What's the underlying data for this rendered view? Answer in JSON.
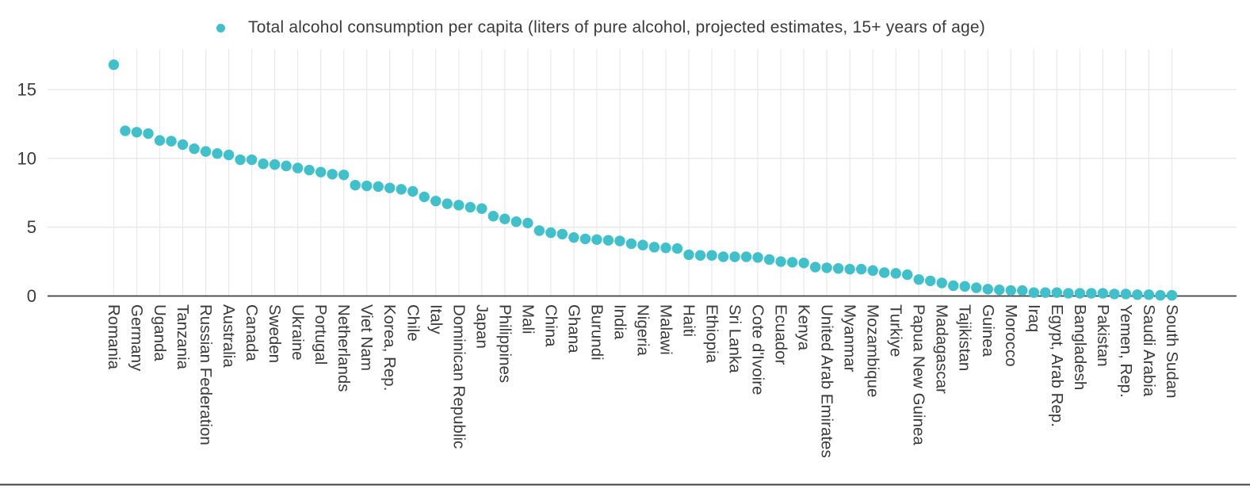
{
  "colors": {
    "marker": "#3fc0ca",
    "text": "#3b3b3b",
    "gridline": "#e9e9e9",
    "axis": "#3f3f3f",
    "background": "#ffffff"
  },
  "legend": {
    "label": "Total alcohol consumption per capita (liters of pure alcohol, projected estimates, 15+ years of age)"
  },
  "chart_data": {
    "type": "scatter",
    "title": "",
    "xlabel": "",
    "ylabel": "",
    "legend_position": "top",
    "grid": true,
    "ylim": [
      0,
      17.9
    ],
    "yticks": [
      0,
      5,
      10,
      15
    ],
    "series_label": "Total alcohol consumption per capita (liters of pure alcohol, projected estimates, 15+ years of age)",
    "points": [
      {
        "label": "Romania",
        "value": 16.8
      },
      {
        "label": "",
        "value": 12.0
      },
      {
        "label": "Germany",
        "value": 11.9
      },
      {
        "label": "",
        "value": 11.8
      },
      {
        "label": "Uganda",
        "value": 11.3
      },
      {
        "label": "",
        "value": 11.25
      },
      {
        "label": "Tanzania",
        "value": 11.0
      },
      {
        "label": "",
        "value": 10.7
      },
      {
        "label": "Russian Federation",
        "value": 10.5
      },
      {
        "label": "",
        "value": 10.35
      },
      {
        "label": "Australia",
        "value": 10.25
      },
      {
        "label": "",
        "value": 9.9
      },
      {
        "label": "Canada",
        "value": 9.9
      },
      {
        "label": "",
        "value": 9.6
      },
      {
        "label": "Sweden",
        "value": 9.55
      },
      {
        "label": "",
        "value": 9.45
      },
      {
        "label": "Ukraine",
        "value": 9.3
      },
      {
        "label": "",
        "value": 9.15
      },
      {
        "label": "Portugal",
        "value": 9.0
      },
      {
        "label": "",
        "value": 8.85
      },
      {
        "label": "Netherlands",
        "value": 8.8
      },
      {
        "label": "",
        "value": 8.05
      },
      {
        "label": "Viet Nam",
        "value": 8.0
      },
      {
        "label": "",
        "value": 7.95
      },
      {
        "label": "Korea, Rep.",
        "value": 7.85
      },
      {
        "label": "",
        "value": 7.75
      },
      {
        "label": "Chile",
        "value": 7.6
      },
      {
        "label": "",
        "value": 7.2
      },
      {
        "label": "Italy",
        "value": 6.9
      },
      {
        "label": "",
        "value": 6.7
      },
      {
        "label": "Dominican Republic",
        "value": 6.6
      },
      {
        "label": "",
        "value": 6.45
      },
      {
        "label": "Japan",
        "value": 6.35
      },
      {
        "label": "",
        "value": 5.8
      },
      {
        "label": "Philippines",
        "value": 5.6
      },
      {
        "label": "",
        "value": 5.4
      },
      {
        "label": "Mali",
        "value": 5.3
      },
      {
        "label": "",
        "value": 4.75
      },
      {
        "label": "China",
        "value": 4.6
      },
      {
        "label": "",
        "value": 4.5
      },
      {
        "label": "Ghana",
        "value": 4.25
      },
      {
        "label": "",
        "value": 4.15
      },
      {
        "label": "Burundi",
        "value": 4.1
      },
      {
        "label": "",
        "value": 4.05
      },
      {
        "label": "India",
        "value": 4.0
      },
      {
        "label": "",
        "value": 3.8
      },
      {
        "label": "Nigeria",
        "value": 3.7
      },
      {
        "label": "",
        "value": 3.55
      },
      {
        "label": "Malawi",
        "value": 3.5
      },
      {
        "label": "",
        "value": 3.45
      },
      {
        "label": "Haiti",
        "value": 3.0
      },
      {
        "label": "",
        "value": 2.95
      },
      {
        "label": "Ethiopia",
        "value": 2.95
      },
      {
        "label": "",
        "value": 2.85
      },
      {
        "label": "Sri Lanka",
        "value": 2.85
      },
      {
        "label": "",
        "value": 2.85
      },
      {
        "label": "Cote d'Ivoire",
        "value": 2.8
      },
      {
        "label": "",
        "value": 2.65
      },
      {
        "label": "Ecuador",
        "value": 2.5
      },
      {
        "label": "",
        "value": 2.45
      },
      {
        "label": "Kenya",
        "value": 2.4
      },
      {
        "label": "",
        "value": 2.1
      },
      {
        "label": "United Arab Emirates",
        "value": 2.05
      },
      {
        "label": "",
        "value": 2.0
      },
      {
        "label": "Myanmar",
        "value": 1.95
      },
      {
        "label": "",
        "value": 1.95
      },
      {
        "label": "Mozambique",
        "value": 1.85
      },
      {
        "label": "",
        "value": 1.7
      },
      {
        "label": "Turkiye",
        "value": 1.65
      },
      {
        "label": "",
        "value": 1.55
      },
      {
        "label": "Papua New Guinea",
        "value": 1.2
      },
      {
        "label": "",
        "value": 1.1
      },
      {
        "label": "Madagascar",
        "value": 0.95
      },
      {
        "label": "",
        "value": 0.75
      },
      {
        "label": "Tajikistan",
        "value": 0.7
      },
      {
        "label": "",
        "value": 0.6
      },
      {
        "label": "Guinea",
        "value": 0.5
      },
      {
        "label": "",
        "value": 0.45
      },
      {
        "label": "Morocco",
        "value": 0.4
      },
      {
        "label": "",
        "value": 0.4
      },
      {
        "label": "Iraq",
        "value": 0.25
      },
      {
        "label": "",
        "value": 0.25
      },
      {
        "label": "Egypt, Arab Rep.",
        "value": 0.25
      },
      {
        "label": "",
        "value": 0.2
      },
      {
        "label": "Bangladesh",
        "value": 0.2
      },
      {
        "label": "",
        "value": 0.2
      },
      {
        "label": "Pakistan",
        "value": 0.2
      },
      {
        "label": "",
        "value": 0.15
      },
      {
        "label": "Yemen, Rep.",
        "value": 0.15
      },
      {
        "label": "",
        "value": 0.1
      },
      {
        "label": "Saudi Arabia",
        "value": 0.1
      },
      {
        "label": "",
        "value": 0.05
      },
      {
        "label": "South Sudan",
        "value": 0.05
      }
    ]
  }
}
